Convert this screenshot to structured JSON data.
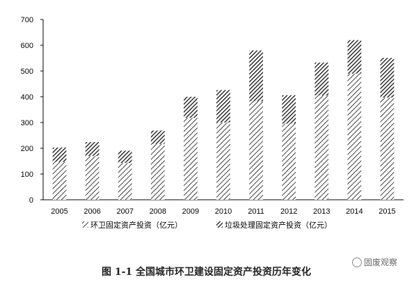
{
  "chart_data": {
    "type": "bar",
    "stacked": true,
    "categories": [
      "2005",
      "2006",
      "2007",
      "2008",
      "2009",
      "2010",
      "2011",
      "2012",
      "2013",
      "2014",
      "2015"
    ],
    "series": [
      {
        "name": "环卫固定资产投资（亿元）",
        "values": [
          147,
          170,
          143,
          217,
          318,
          300,
          382,
          296,
          405,
          490,
          397
        ],
        "pattern": "diagonal-light"
      },
      {
        "name": "垃圾处理固定资产投资（亿元）",
        "values": [
          56,
          54,
          48,
          52,
          82,
          126,
          198,
          110,
          128,
          130,
          154
        ],
        "pattern": "diagonal-dense"
      }
    ],
    "ylim": [
      0,
      700
    ],
    "yticks": [
      0,
      100,
      200,
      300,
      400,
      500,
      600,
      700
    ],
    "grid": false,
    "legend_position": "bottom"
  },
  "caption": "图 1-1 全国城市环卫建设固定资产投资历年变化",
  "watermark": "固废观察"
}
